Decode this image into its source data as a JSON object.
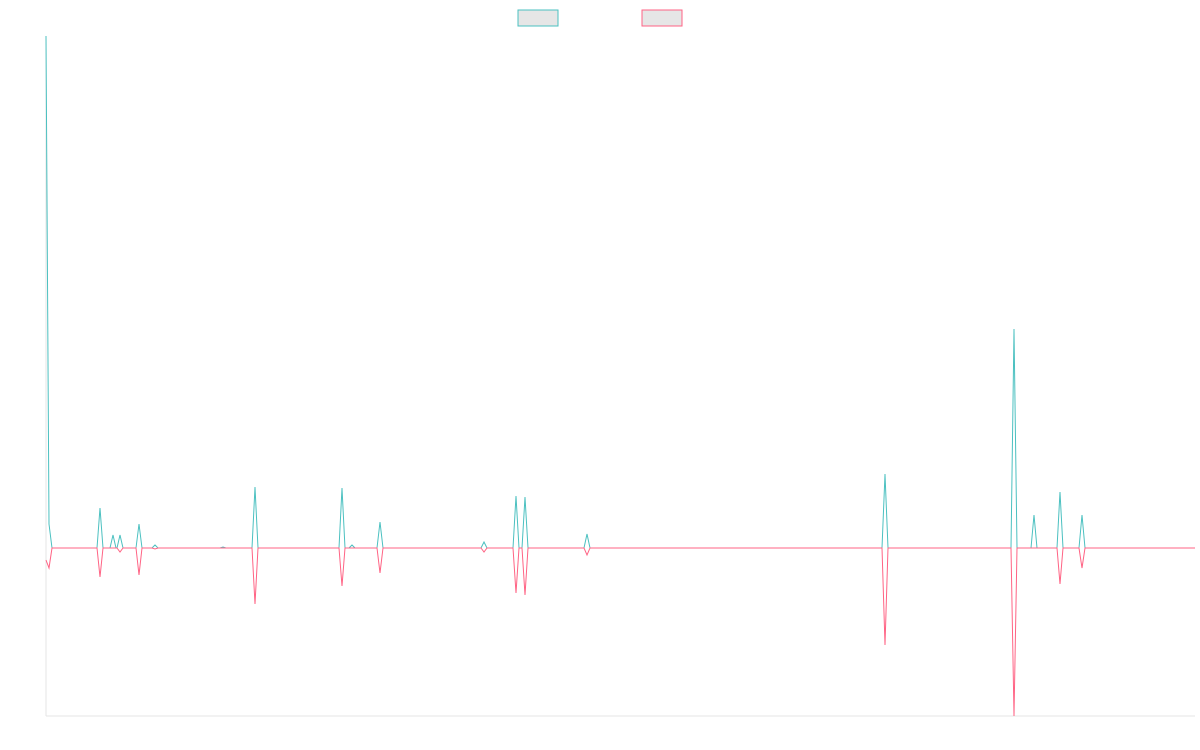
{
  "chart_data": {
    "type": "line",
    "x": [
      0,
      3,
      6,
      51,
      54,
      57,
      64,
      67,
      70,
      71,
      74,
      77,
      90,
      93,
      96,
      106,
      109,
      112,
      174,
      177,
      180,
      206,
      209,
      212,
      293,
      296,
      299,
      303,
      306,
      309,
      331,
      334,
      337,
      435,
      438,
      441,
      467,
      470,
      473,
      476,
      479,
      482,
      538,
      541,
      544,
      836,
      839,
      842,
      965,
      968,
      971,
      985,
      988,
      991,
      1011,
      1014,
      1017,
      1033,
      1036,
      1039,
      1149
    ],
    "series": [
      {
        "color": "#4bc0c0",
        "values": [
          512,
          24,
          0,
          0,
          40,
          0,
          0,
          13,
          0,
          0,
          13,
          0,
          0,
          24,
          0,
          0,
          3,
          0,
          0,
          1,
          0,
          0,
          61,
          0,
          0,
          60,
          0,
          0,
          3,
          0,
          0,
          26,
          0,
          0,
          6,
          0,
          0,
          52,
          0,
          0,
          51,
          0,
          0,
          14,
          0,
          0,
          74,
          0,
          0,
          219,
          0,
          0,
          33,
          0,
          0,
          56,
          0,
          0,
          33,
          0,
          0
        ]
      },
      {
        "color": "#ff6384",
        "values": [
          -12,
          -20,
          0,
          0,
          -29,
          0,
          0,
          0,
          0,
          0,
          -4,
          0,
          0,
          -27,
          0,
          0,
          -1,
          0,
          0,
          0,
          0,
          0,
          -56,
          0,
          0,
          -38,
          0,
          0,
          0,
          0,
          0,
          -25,
          0,
          0,
          -4,
          0,
          0,
          -45,
          0,
          0,
          -47,
          0,
          0,
          -7,
          0,
          0,
          -97,
          0,
          0,
          -168,
          0,
          0,
          0,
          0,
          0,
          -36,
          0,
          0,
          -20,
          0,
          0
        ]
      }
    ],
    "xlim": [
      0,
      1149
    ],
    "ylim": [
      -168,
      512
    ]
  }
}
